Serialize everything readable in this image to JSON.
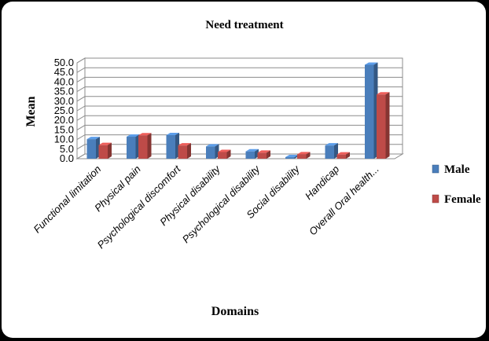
{
  "chart_data": {
    "type": "bar",
    "title": "Need treatment",
    "xlabel": "Domains",
    "ylabel": "Mean",
    "ylim": [
      0,
      50
    ],
    "yticks": [
      "0.0",
      "5.0",
      "10.0",
      "15.0",
      "20.0",
      "25.0",
      "30.0",
      "35.0",
      "40.0",
      "45.0",
      "50.0"
    ],
    "grid": true,
    "legend_position": "right",
    "categories": [
      "Functional limitation",
      "Physical pain",
      "Psychological discomfort",
      "Physical disability",
      "Psychological disability",
      "Social disability",
      "Handicap",
      "Overall Oral health..."
    ],
    "series": [
      {
        "name": "Male",
        "color": "#4a7ebb",
        "values": [
          10.2,
          11.5,
          12.3,
          6.4,
          3.8,
          0.8,
          6.9,
          49.0
        ]
      },
      {
        "name": "Female",
        "color": "#be4b48",
        "values": [
          7.1,
          12.2,
          6.9,
          3.5,
          3.1,
          2.3,
          2.2,
          33.5
        ]
      }
    ]
  }
}
